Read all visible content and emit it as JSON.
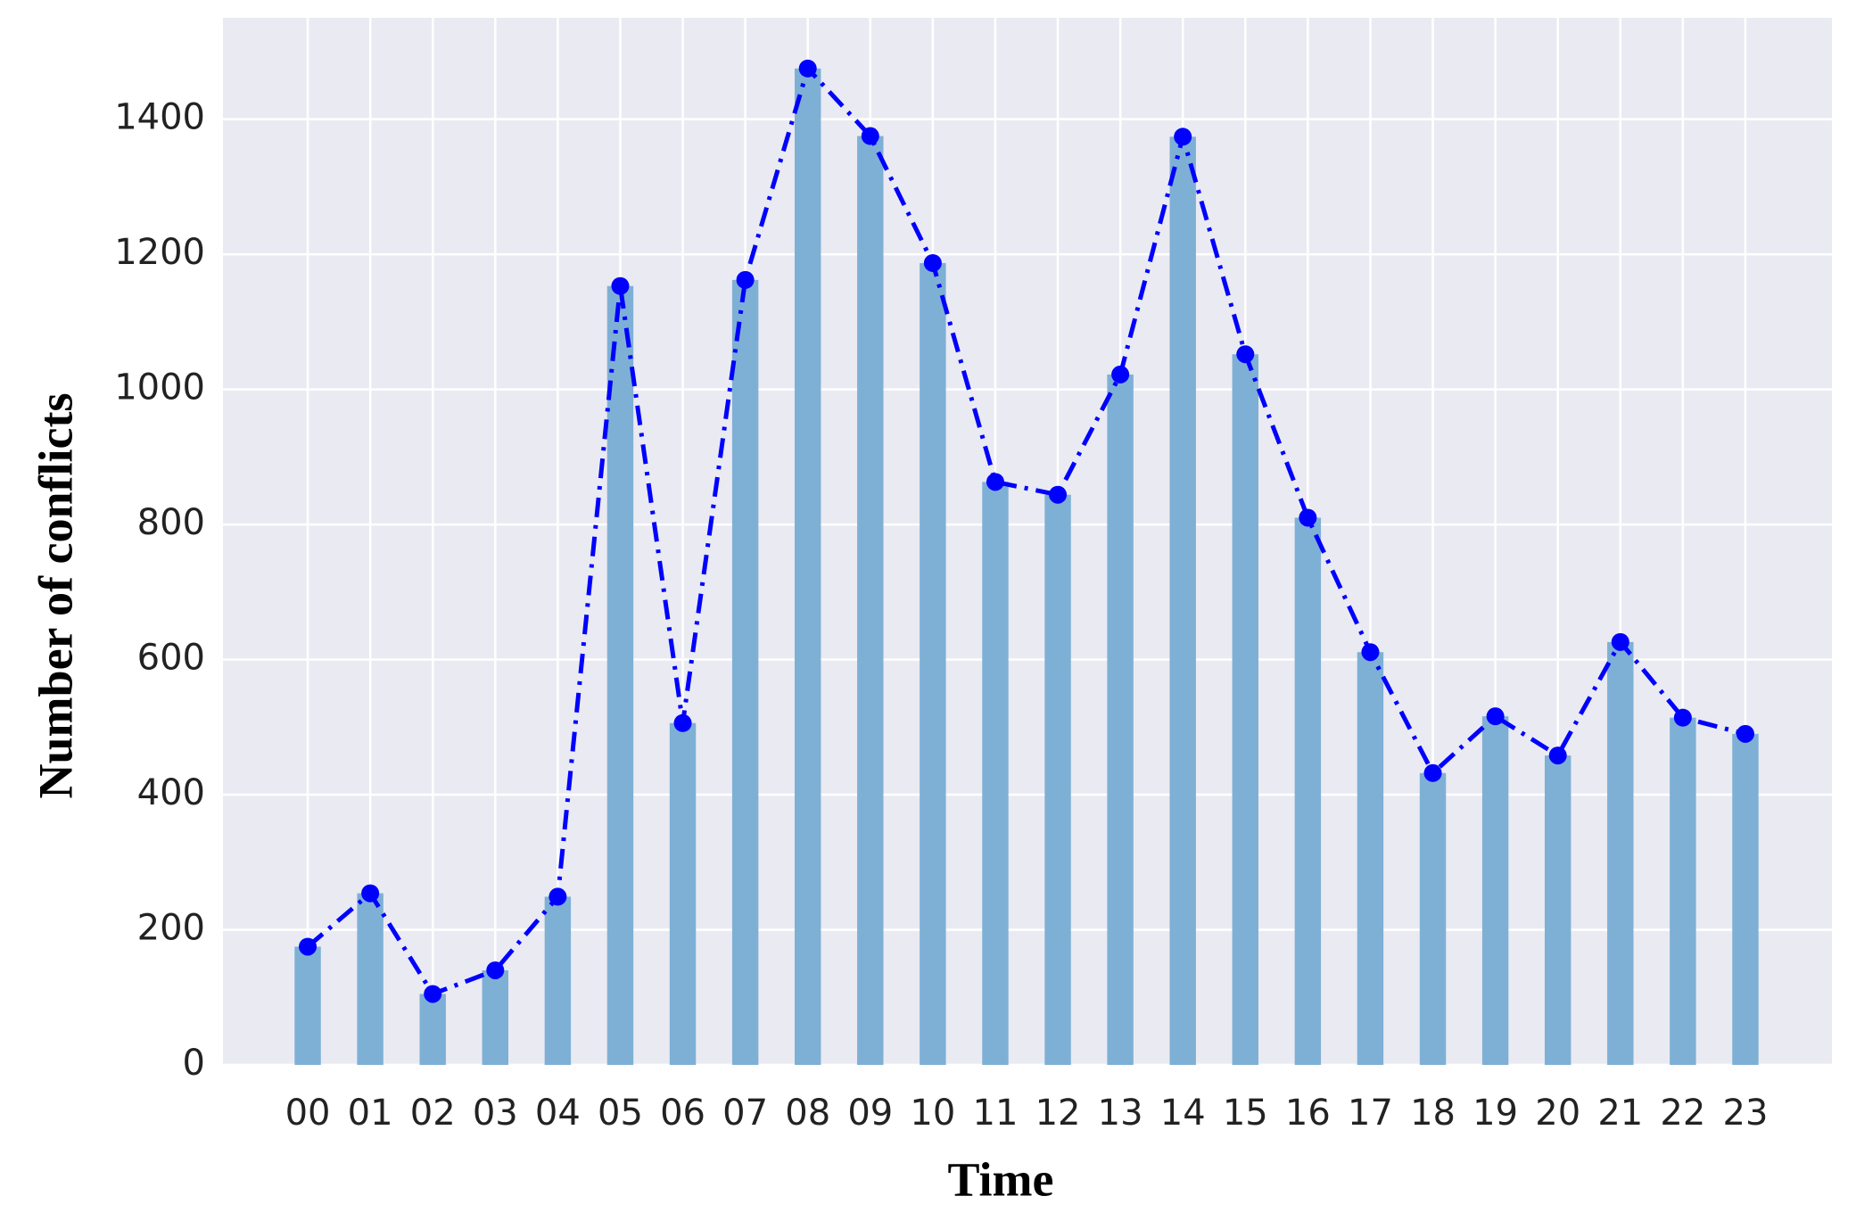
{
  "chart_data": {
    "type": "bar_line",
    "x_label": "Time",
    "y_label": "Number of conflicts",
    "categories": [
      "00",
      "01",
      "02",
      "03",
      "04",
      "05",
      "06",
      "07",
      "08",
      "09",
      "10",
      "11",
      "12",
      "13",
      "14",
      "15",
      "16",
      "17",
      "18",
      "19",
      "20",
      "21",
      "22",
      "23"
    ],
    "values": [
      175,
      254,
      105,
      140,
      249,
      1153,
      506,
      1162,
      1475,
      1375,
      1187,
      863,
      844,
      1022,
      1374,
      1052,
      810,
      611,
      432,
      516,
      458,
      626,
      514,
      490
    ],
    "bar_color": "#7eb0d5",
    "line_color": "#0000ff",
    "ylim": [
      0,
      1550
    ],
    "yticks": [
      0,
      200,
      400,
      600,
      800,
      1000,
      1200,
      1400
    ],
    "grid": true
  }
}
